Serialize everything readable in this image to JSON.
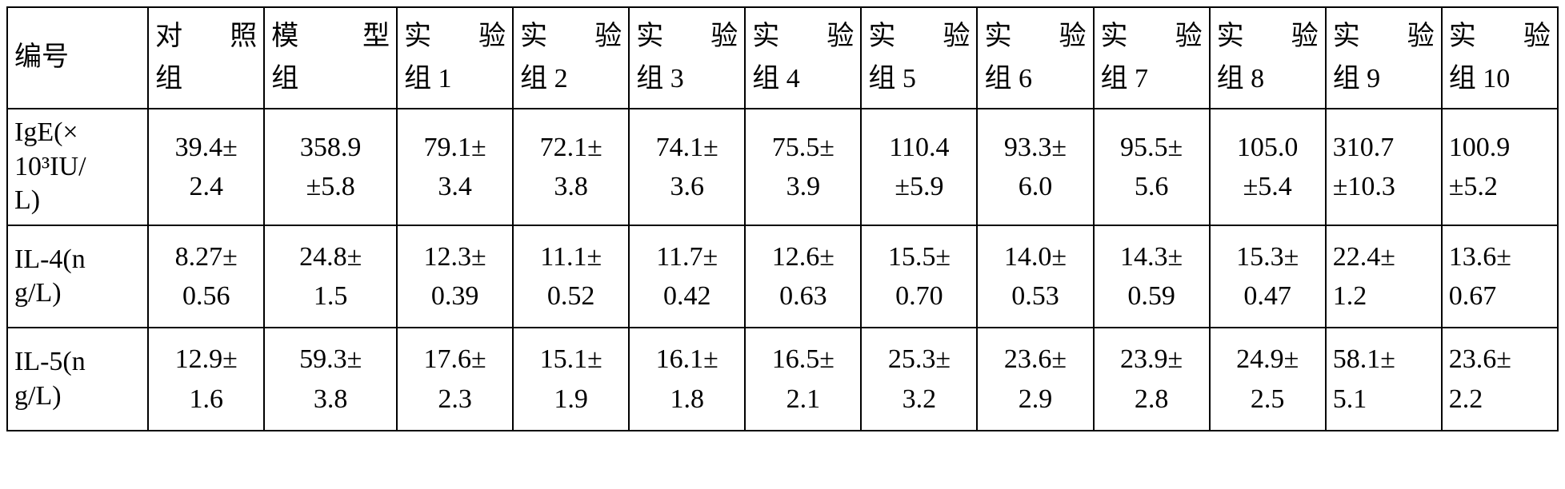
{
  "table": {
    "border_color": "#000000",
    "background_color": "#ffffff",
    "text_color": "#000000",
    "font_family": "Times New Roman / SimSun serif",
    "header_fontsize_pt": 26,
    "cell_fontsize_pt": 26,
    "columns": [
      {
        "key": "label",
        "l1a": "编号",
        "l1b": "",
        "l2": "",
        "align": "left"
      },
      {
        "key": "ctrl",
        "l1a": "对",
        "l1b": "照",
        "l2": "组",
        "align": "center"
      },
      {
        "key": "model",
        "l1a": "模",
        "l1b": "型",
        "l2": "组",
        "align": "center"
      },
      {
        "key": "e1",
        "l1a": "实",
        "l1b": "验",
        "l2": "组 1",
        "align": "center"
      },
      {
        "key": "e2",
        "l1a": "实",
        "l1b": "验",
        "l2": "组 2",
        "align": "center"
      },
      {
        "key": "e3",
        "l1a": "实",
        "l1b": "验",
        "l2": "组 3",
        "align": "center"
      },
      {
        "key": "e4",
        "l1a": "实",
        "l1b": "验",
        "l2": "组 4",
        "align": "center"
      },
      {
        "key": "e5",
        "l1a": "实",
        "l1b": "验",
        "l2": "组 5",
        "align": "center"
      },
      {
        "key": "e6",
        "l1a": "实",
        "l1b": "验",
        "l2": "组 6",
        "align": "center"
      },
      {
        "key": "e7",
        "l1a": "实",
        "l1b": "验",
        "l2": "组 7",
        "align": "center"
      },
      {
        "key": "e8",
        "l1a": "实",
        "l1b": "验",
        "l2": "组 8",
        "align": "center"
      },
      {
        "key": "e9",
        "l1a": "实",
        "l1b": "验",
        "l2": "组 9",
        "align": "left"
      },
      {
        "key": "e10",
        "l1a": "实",
        "l1b": "验",
        "l2": "组 10",
        "align": "left"
      }
    ],
    "rows": [
      {
        "label_l1": "IgE(×",
        "label_l2": "10³IU/",
        "label_l3": "L)",
        "cells": {
          "ctrl": {
            "l1": "39.4±",
            "l2": "2.4"
          },
          "model": {
            "l1": "358.9",
            "l2": "±5.8"
          },
          "e1": {
            "l1": "79.1±",
            "l2": "3.4"
          },
          "e2": {
            "l1": "72.1±",
            "l2": "3.8"
          },
          "e3": {
            "l1": "74.1±",
            "l2": "3.6"
          },
          "e4": {
            "l1": "75.5±",
            "l2": "3.9"
          },
          "e5": {
            "l1": "110.4",
            "l2": "±5.9"
          },
          "e6": {
            "l1": "93.3±",
            "l2": "6.0"
          },
          "e7": {
            "l1": "95.5±",
            "l2": "5.6"
          },
          "e8": {
            "l1": "105.0",
            "l2": "±5.4"
          },
          "e9": {
            "l1": "310.7",
            "l2": "±10.3"
          },
          "e10": {
            "l1": "100.9",
            "l2": "±5.2"
          }
        }
      },
      {
        "label_l1": "IL-4(n",
        "label_l2": "g/L)",
        "label_l3": "",
        "cells": {
          "ctrl": {
            "l1": "8.27±",
            "l2": "0.56"
          },
          "model": {
            "l1": "24.8±",
            "l2": "1.5"
          },
          "e1": {
            "l1": "12.3±",
            "l2": "0.39"
          },
          "e2": {
            "l1": "11.1±",
            "l2": "0.52"
          },
          "e3": {
            "l1": "11.7±",
            "l2": "0.42"
          },
          "e4": {
            "l1": "12.6±",
            "l2": "0.63"
          },
          "e5": {
            "l1": "15.5±",
            "l2": "0.70"
          },
          "e6": {
            "l1": "14.0±",
            "l2": "0.53"
          },
          "e7": {
            "l1": "14.3±",
            "l2": "0.59"
          },
          "e8": {
            "l1": "15.3±",
            "l2": "0.47"
          },
          "e9": {
            "l1": "22.4±",
            "l2": "1.2"
          },
          "e10": {
            "l1": "13.6±",
            "l2": "0.67"
          }
        }
      },
      {
        "label_l1": "IL-5(n",
        "label_l2": "g/L)",
        "label_l3": "",
        "cells": {
          "ctrl": {
            "l1": "12.9±",
            "l2": "1.6"
          },
          "model": {
            "l1": "59.3±",
            "l2": "3.8"
          },
          "e1": {
            "l1": "17.6±",
            "l2": "2.3"
          },
          "e2": {
            "l1": "15.1±",
            "l2": "1.9"
          },
          "e3": {
            "l1": "16.1±",
            "l2": "1.8"
          },
          "e4": {
            "l1": "16.5±",
            "l2": "2.1"
          },
          "e5": {
            "l1": "25.3±",
            "l2": "3.2"
          },
          "e6": {
            "l1": "23.6±",
            "l2": "2.9"
          },
          "e7": {
            "l1": "23.9±",
            "l2": "2.8"
          },
          "e8": {
            "l1": "24.9±",
            "l2": "2.5"
          },
          "e9": {
            "l1": "58.1±",
            "l2": "5.1"
          },
          "e10": {
            "l1": "23.6±",
            "l2": "2.2"
          }
        }
      }
    ]
  }
}
